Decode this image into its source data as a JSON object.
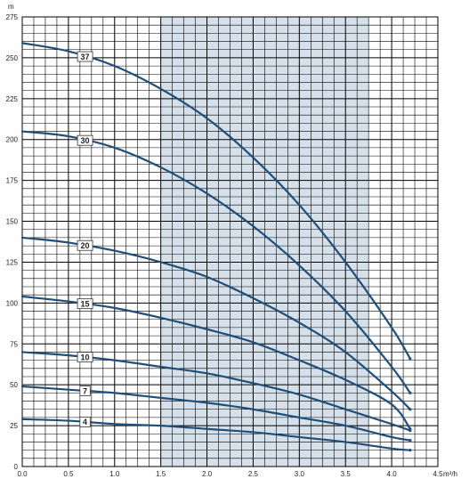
{
  "chart_data": {
    "type": "line",
    "title": "",
    "ylabel": "m",
    "xlabel": "m³/h",
    "xlim": [
      0,
      4.5
    ],
    "ylim": [
      0,
      275
    ],
    "x_ticks": [
      "0.0",
      "0.5",
      "1.0",
      "1.5",
      "2.0",
      "2.5",
      "3.0",
      "3.5",
      "4.0",
      "4.5"
    ],
    "y_ticks": [
      "0",
      "25",
      "50",
      "75",
      "100",
      "125",
      "150",
      "175",
      "200",
      "225",
      "250",
      "275"
    ],
    "grid": true,
    "shaded_range_x": [
      1.5,
      3.75
    ],
    "colors": {
      "curve": "#1f4e79",
      "shade": "#d6e0ea",
      "grid": "#000000"
    },
    "series": [
      {
        "name": "37",
        "x": [
          0,
          0.5,
          1.0,
          1.5,
          2.0,
          2.5,
          3.0,
          3.5,
          4.0,
          4.2
        ],
        "y": [
          259,
          254,
          245,
          231,
          213,
          189,
          160,
          125,
          85,
          66
        ]
      },
      {
        "name": "30",
        "x": [
          0,
          0.5,
          1.0,
          1.5,
          2.0,
          2.5,
          3.0,
          3.5,
          4.0,
          4.2
        ],
        "y": [
          205,
          202,
          195,
          183,
          167,
          147,
          123,
          95,
          61,
          45
        ]
      },
      {
        "name": "20",
        "x": [
          0,
          0.5,
          1.0,
          1.5,
          2.0,
          2.5,
          3.0,
          3.5,
          4.0,
          4.2
        ],
        "y": [
          140,
          137,
          132,
          125,
          116,
          103,
          88,
          70,
          46,
          35
        ]
      },
      {
        "name": "15",
        "x": [
          0,
          0.5,
          1.0,
          1.5,
          2.0,
          2.5,
          3.0,
          3.5,
          4.0,
          4.2
        ],
        "y": [
          104,
          101,
          97,
          91,
          84,
          76,
          65,
          53,
          38,
          23
        ]
      },
      {
        "name": "10",
        "x": [
          0,
          0.5,
          1.0,
          1.5,
          2.0,
          2.5,
          3.0,
          3.5,
          4.0,
          4.2
        ],
        "y": [
          70,
          68,
          65,
          61,
          57,
          51,
          44,
          35,
          26,
          22
        ]
      },
      {
        "name": "7",
        "x": [
          0,
          0.5,
          1.0,
          1.5,
          2.0,
          2.5,
          3.0,
          3.5,
          4.0,
          4.2
        ],
        "y": [
          49,
          47,
          45,
          42,
          39,
          35,
          30,
          25,
          18,
          16
        ]
      },
      {
        "name": "4",
        "x": [
          0,
          0.5,
          1.0,
          1.5,
          2.0,
          2.5,
          3.0,
          3.5,
          4.0,
          4.2
        ],
        "y": [
          29,
          28,
          26,
          25,
          23,
          21,
          18,
          15,
          11,
          10
        ]
      }
    ],
    "curve_labels": [
      {
        "name": "37",
        "x": 0.68
      },
      {
        "name": "30",
        "x": 0.68
      },
      {
        "name": "20",
        "x": 0.68
      },
      {
        "name": "15",
        "x": 0.68
      },
      {
        "name": "10",
        "x": 0.68
      },
      {
        "name": "7",
        "x": 0.68
      },
      {
        "name": "4",
        "x": 0.68
      }
    ]
  }
}
